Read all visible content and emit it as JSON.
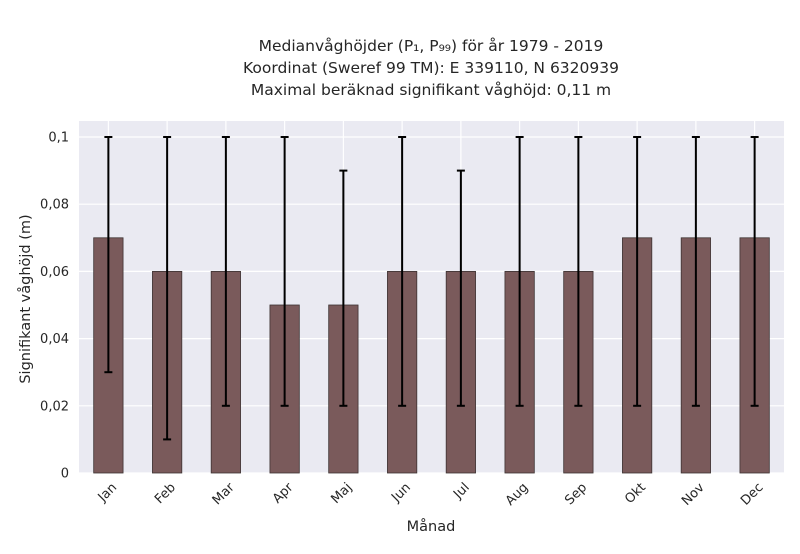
{
  "chart_data": {
    "type": "bar",
    "title_lines": [
      "Medianvåghöjder (P₁, P₉₉) för år 1979 - 2019",
      "Koordinat (Sweref 99 TM): E 339110, N 6320939",
      "Maximal beräknad signifikant våghöjd: 0,11 m"
    ],
    "xlabel": "Månad",
    "ylabel": "Signifikant våghöjd (m)",
    "categories": [
      "Jan",
      "Feb",
      "Mar",
      "Apr",
      "Maj",
      "Jun",
      "Jul",
      "Aug",
      "Sep",
      "Okt",
      "Nov",
      "Dec"
    ],
    "series": [
      {
        "values": [
          0.07,
          0.06,
          0.06,
          0.05,
          0.05,
          0.06,
          0.06,
          0.06,
          0.06,
          0.07,
          0.07,
          0.07
        ],
        "p1": [
          0.03,
          0.01,
          0.02,
          0.02,
          0.02,
          0.02,
          0.02,
          0.02,
          0.02,
          0.02,
          0.02,
          0.02
        ],
        "p99": [
          0.1,
          0.1,
          0.1,
          0.1,
          0.09,
          0.1,
          0.09,
          0.1,
          0.1,
          0.1,
          0.1,
          0.1
        ]
      }
    ],
    "ylim": [
      0,
      0.1
    ],
    "yticks": [
      0,
      0.02,
      0.04,
      0.06,
      0.08,
      0.1
    ],
    "ytick_labels": [
      "0",
      "0,02",
      "0,04",
      "0,06",
      "0,08",
      "0,1"
    ],
    "grid": true,
    "colors": {
      "bar": "#7a5a5b",
      "bar_edge": "#3d3333",
      "errorbar": "#000000",
      "plot_background": "#eaeaf2",
      "grid": "#ffffff"
    }
  }
}
